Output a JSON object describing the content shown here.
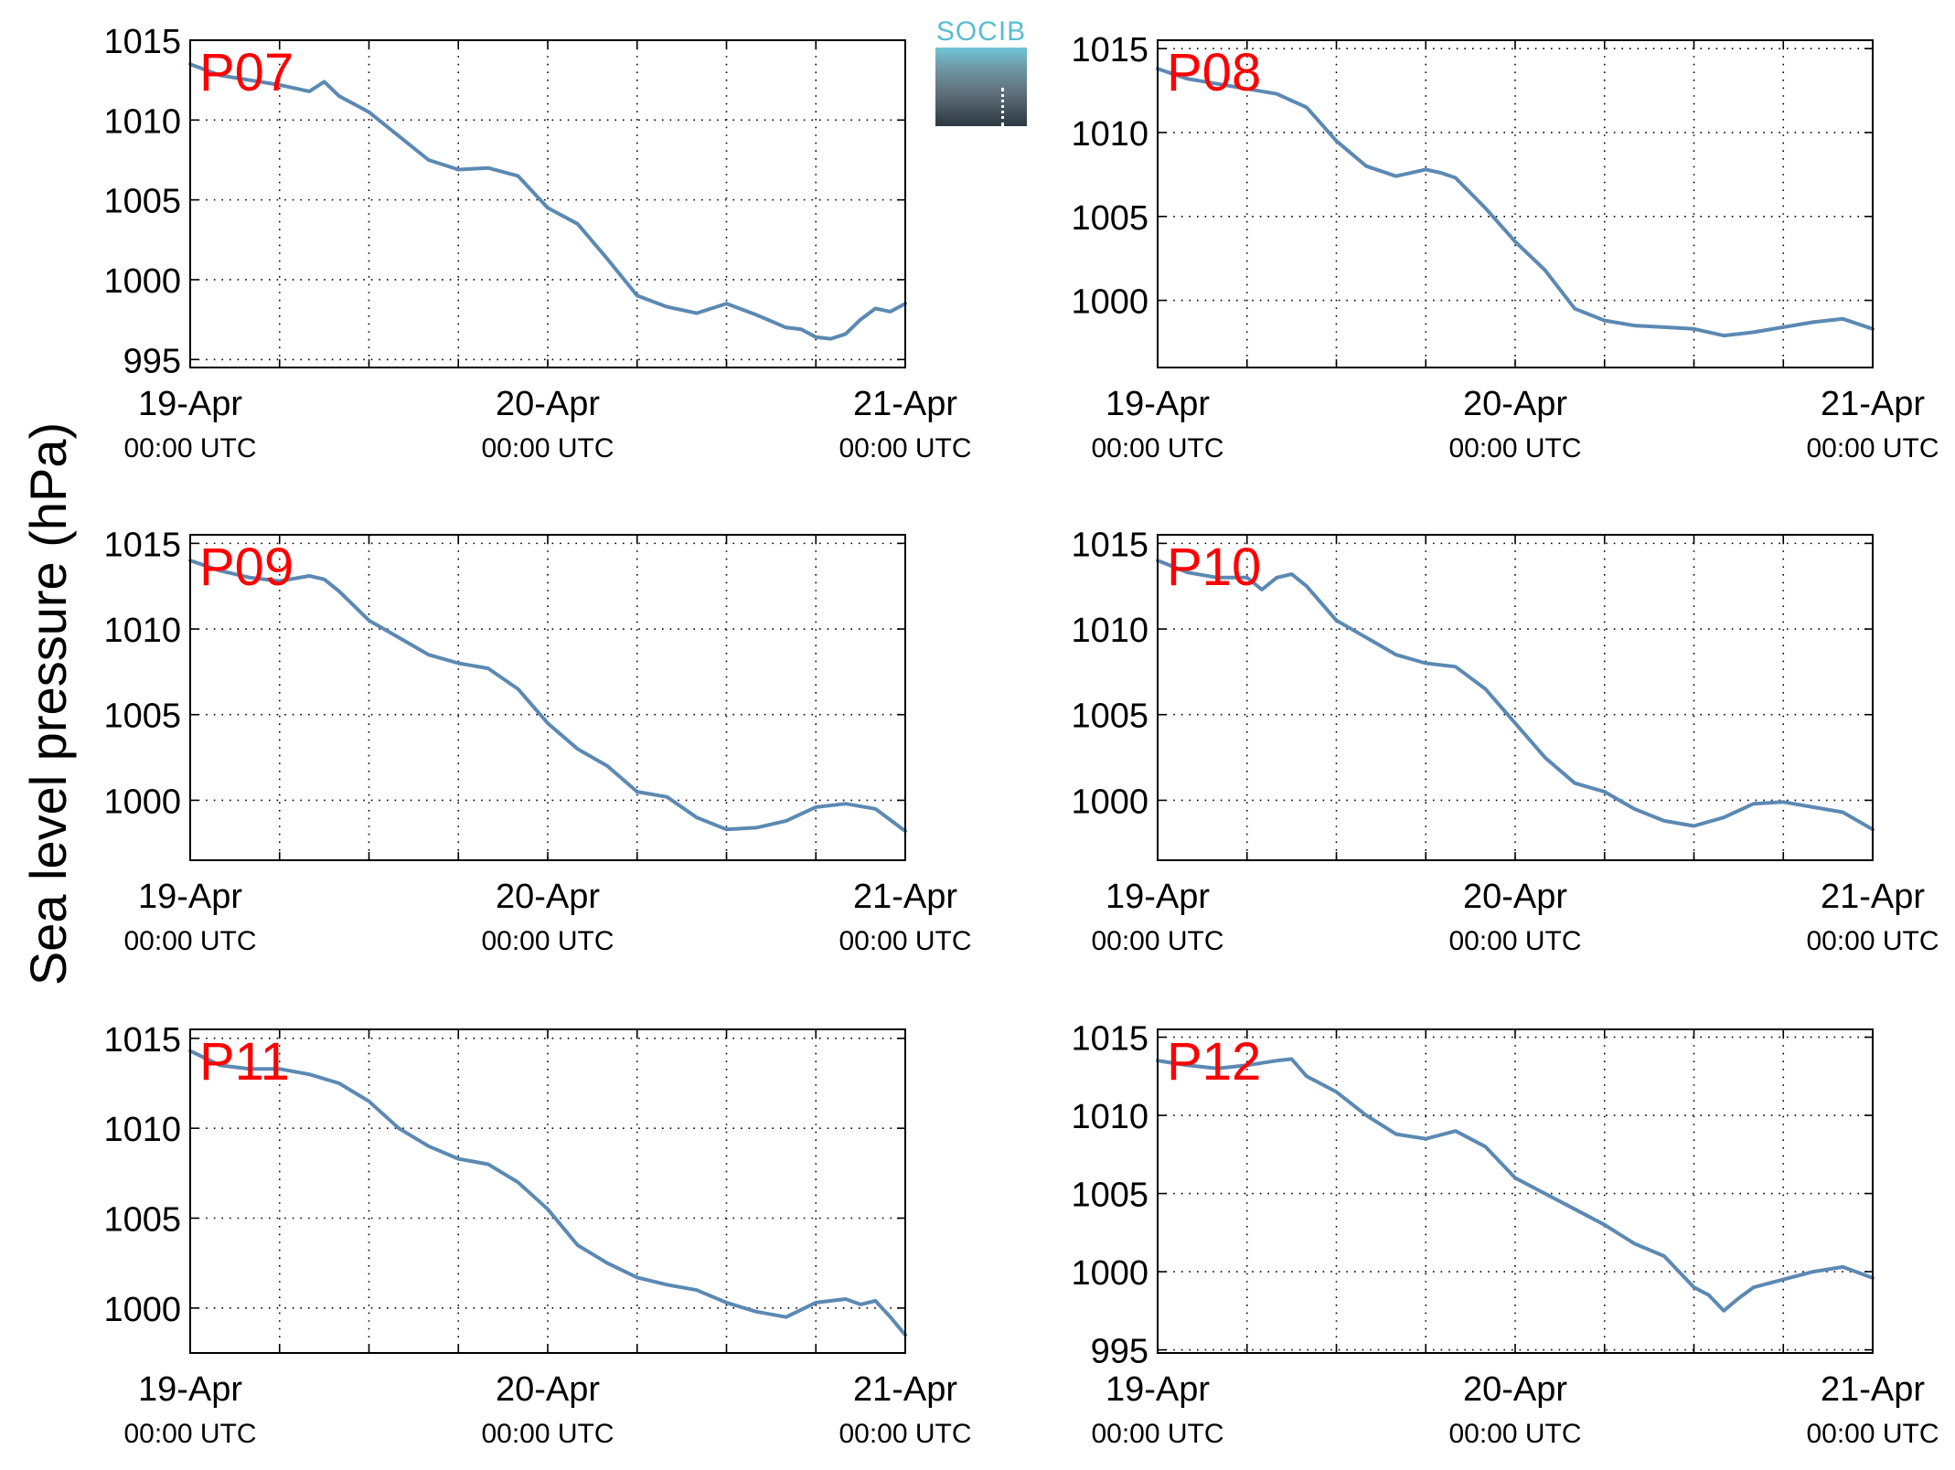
{
  "figure": {
    "ylabel": "Sea level pressure (hPa)",
    "logo_text": "SOCIB",
    "colors": {
      "line": "#5b89b3",
      "panel_label": "#ff0000",
      "axes": "#000000",
      "grid": "#000000"
    }
  },
  "chart_data": [
    {
      "type": "line",
      "title": "P07",
      "x_ticks": [
        "19-Apr",
        "20-Apr",
        "21-Apr"
      ],
      "x_tick_sub": "00:00 UTC",
      "xlim": [
        0,
        48
      ],
      "ylim": [
        994.5,
        1015
      ],
      "y_ticks": [
        995,
        1000,
        1005,
        1010,
        1015
      ],
      "grid": true,
      "x": [
        0,
        2,
        4,
        6,
        8,
        9,
        10,
        12,
        14,
        16,
        18,
        20,
        22,
        24,
        26,
        28,
        30,
        32,
        34,
        36,
        38,
        40,
        41,
        42,
        43,
        44,
        45,
        46,
        47,
        48
      ],
      "values": [
        1013.5,
        1012.8,
        1012.5,
        1012.2,
        1011.8,
        1012.4,
        1011.5,
        1010.5,
        1009.0,
        1007.5,
        1006.9,
        1007.0,
        1006.5,
        1004.5,
        1003.5,
        1001.3,
        999.0,
        998.3,
        997.9,
        998.5,
        997.8,
        997.0,
        996.9,
        996.4,
        996.3,
        996.6,
        997.5,
        998.2,
        998.0,
        998.5
      ]
    },
    {
      "type": "line",
      "title": "P08",
      "x_ticks": [
        "19-Apr",
        "20-Apr",
        "21-Apr"
      ],
      "x_tick_sub": "00:00 UTC",
      "xlim": [
        0,
        48
      ],
      "ylim": [
        996,
        1015.5
      ],
      "y_ticks": [
        1000,
        1005,
        1010,
        1015
      ],
      "grid": true,
      "x": [
        0,
        2,
        4,
        6,
        8,
        10,
        12,
        14,
        16,
        18,
        19,
        20,
        22,
        24,
        26,
        28,
        30,
        32,
        34,
        36,
        38,
        40,
        42,
        44,
        46,
        48
      ],
      "values": [
        1013.8,
        1013.2,
        1012.9,
        1012.6,
        1012.3,
        1011.5,
        1009.5,
        1008.0,
        1007.4,
        1007.8,
        1007.6,
        1007.3,
        1005.5,
        1003.5,
        1001.8,
        999.5,
        998.8,
        998.5,
        998.4,
        998.3,
        997.9,
        998.1,
        998.4,
        998.7,
        998.9,
        998.3
      ]
    },
    {
      "type": "line",
      "title": "P09",
      "x_ticks": [
        "19-Apr",
        "20-Apr",
        "21-Apr"
      ],
      "x_tick_sub": "00:00 UTC",
      "xlim": [
        0,
        48
      ],
      "ylim": [
        996.5,
        1015.5
      ],
      "y_ticks": [
        1000,
        1005,
        1010,
        1015
      ],
      "grid": true,
      "x": [
        0,
        2,
        4,
        6,
        8,
        9,
        10,
        12,
        14,
        16,
        18,
        20,
        22,
        24,
        26,
        28,
        30,
        32,
        34,
        36,
        38,
        40,
        42,
        44,
        46,
        48
      ],
      "values": [
        1014.0,
        1013.4,
        1013.0,
        1012.8,
        1013.1,
        1012.9,
        1012.2,
        1010.5,
        1009.5,
        1008.5,
        1008.0,
        1007.7,
        1006.5,
        1004.5,
        1003.0,
        1002.0,
        1000.5,
        1000.2,
        999.0,
        998.3,
        998.4,
        998.8,
        999.6,
        999.8,
        999.5,
        998.2
      ]
    },
    {
      "type": "line",
      "title": "P10",
      "x_ticks": [
        "19-Apr",
        "20-Apr",
        "21-Apr"
      ],
      "x_tick_sub": "00:00 UTC",
      "xlim": [
        0,
        48
      ],
      "ylim": [
        996.5,
        1015.5
      ],
      "y_ticks": [
        1000,
        1005,
        1010,
        1015
      ],
      "grid": true,
      "x": [
        0,
        2,
        4,
        6,
        7,
        8,
        9,
        10,
        12,
        14,
        16,
        18,
        20,
        22,
        24,
        26,
        28,
        30,
        32,
        34,
        36,
        38,
        40,
        42,
        44,
        46,
        48
      ],
      "values": [
        1014.0,
        1013.3,
        1013.0,
        1013.0,
        1012.3,
        1013.0,
        1013.2,
        1012.5,
        1010.5,
        1009.5,
        1008.5,
        1008.0,
        1007.8,
        1006.5,
        1004.5,
        1002.5,
        1001.0,
        1000.5,
        999.5,
        998.8,
        998.5,
        999.0,
        999.8,
        999.9,
        999.6,
        999.3,
        998.3
      ]
    },
    {
      "type": "line",
      "title": "P11",
      "x_ticks": [
        "19-Apr",
        "20-Apr",
        "21-Apr"
      ],
      "x_tick_sub": "00:00 UTC",
      "xlim": [
        0,
        48
      ],
      "ylim": [
        997.5,
        1015.5
      ],
      "y_ticks": [
        1000,
        1005,
        1010,
        1015
      ],
      "grid": true,
      "x": [
        0,
        2,
        4,
        6,
        8,
        10,
        12,
        14,
        16,
        18,
        20,
        22,
        24,
        26,
        28,
        30,
        32,
        34,
        36,
        38,
        40,
        42,
        44,
        45,
        46,
        47,
        48
      ],
      "values": [
        1014.3,
        1013.5,
        1013.3,
        1013.3,
        1013.0,
        1012.5,
        1011.5,
        1010.0,
        1009.0,
        1008.3,
        1008.0,
        1007.0,
        1005.5,
        1003.5,
        1002.5,
        1001.7,
        1001.3,
        1001.0,
        1000.3,
        999.8,
        999.5,
        1000.3,
        1000.5,
        1000.2,
        1000.4,
        999.5,
        998.5
      ]
    },
    {
      "type": "line",
      "title": "P12",
      "x_ticks": [
        "19-Apr",
        "20-Apr",
        "21-Apr"
      ],
      "x_tick_sub": "00:00 UTC",
      "xlim": [
        0,
        48
      ],
      "ylim": [
        994.8,
        1015.5
      ],
      "y_ticks": [
        995,
        1000,
        1005,
        1010,
        1015
      ],
      "grid": true,
      "x": [
        0,
        2,
        4,
        6,
        8,
        9,
        10,
        12,
        14,
        16,
        18,
        20,
        22,
        24,
        26,
        28,
        30,
        32,
        34,
        36,
        37,
        38,
        39,
        40,
        42,
        44,
        46,
        48
      ],
      "values": [
        1013.5,
        1013.2,
        1013.0,
        1013.2,
        1013.5,
        1013.6,
        1012.5,
        1011.5,
        1010.0,
        1008.8,
        1008.5,
        1009.0,
        1008.0,
        1006.0,
        1005.0,
        1004.0,
        1003.0,
        1001.8,
        1001.0,
        999.0,
        998.5,
        997.5,
        998.3,
        999.0,
        999.5,
        1000.0,
        1000.3,
        999.6
      ]
    }
  ]
}
